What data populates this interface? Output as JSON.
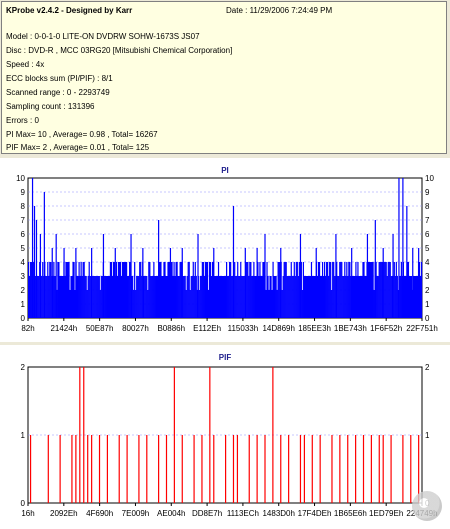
{
  "header": {
    "title": "KProbe v2.4.2 - Designed by Karr",
    "date": "Date : 11/29/2006 7:24:49 PM"
  },
  "info": {
    "model": "Model : 0-0-1-0 LITE-ON DVDRW SOHW-1673S JS07",
    "disc": "Disc : DVD-R , MCC 03RG20   [Mitsubishi Chemical Corporation]",
    "speed": "Speed : 4x",
    "ecc": "ECC blocks sum (PI/PIF) : 8/1",
    "range": "Scanned range : 0 - 2293749",
    "sampling": "Sampling count : 131396",
    "errors": "Errors : 0",
    "pi": "PI Max= 10 , Average= 0.98 , Total= 16267",
    "pif": "PIF Max= 2 , Average= 0.01 , Total= 125"
  },
  "colors": {
    "pi_bar": "#0000ff",
    "pif_bar": "#ff0000",
    "title": "#1e1e8c",
    "grid": "#9090ff"
  },
  "chart_data": [
    {
      "type": "bar",
      "title": "PI",
      "ylim": [
        0,
        10
      ],
      "yticks": [
        0,
        1,
        2,
        3,
        4,
        5,
        6,
        7,
        8,
        9,
        10
      ],
      "xticks": [
        "82h",
        "21424h",
        "50E87h",
        "80027h",
        "B0886h",
        "E112Eh",
        "115033h",
        "14D869h",
        "185EE3h",
        "1BE743h",
        "1F6F52h",
        "22F751h"
      ],
      "baseline_range": [
        3,
        4
      ],
      "spikes": [
        [
          0.01,
          10
        ],
        [
          0.015,
          8
        ],
        [
          0.02,
          7
        ],
        [
          0.03,
          6
        ],
        [
          0.04,
          9
        ],
        [
          0.06,
          5
        ],
        [
          0.07,
          6
        ],
        [
          0.09,
          5
        ],
        [
          0.12,
          5
        ],
        [
          0.16,
          5
        ],
        [
          0.19,
          6
        ],
        [
          0.22,
          5
        ],
        [
          0.26,
          6
        ],
        [
          0.29,
          5
        ],
        [
          0.33,
          7
        ],
        [
          0.36,
          5
        ],
        [
          0.39,
          5
        ],
        [
          0.43,
          6
        ],
        [
          0.47,
          5
        ],
        [
          0.52,
          8
        ],
        [
          0.55,
          5
        ],
        [
          0.58,
          5
        ],
        [
          0.6,
          6
        ],
        [
          0.64,
          5
        ],
        [
          0.69,
          6
        ],
        [
          0.73,
          5
        ],
        [
          0.78,
          6
        ],
        [
          0.82,
          5
        ],
        [
          0.86,
          6
        ],
        [
          0.88,
          7
        ],
        [
          0.9,
          5
        ],
        [
          0.925,
          6
        ],
        [
          0.94,
          10
        ],
        [
          0.95,
          10
        ],
        [
          0.96,
          8
        ],
        [
          0.975,
          5
        ],
        [
          0.99,
          5
        ]
      ]
    },
    {
      "type": "bar",
      "title": "PIF",
      "ylim": [
        0,
        2
      ],
      "yticks": [
        0,
        1,
        2
      ],
      "xticks": [
        "16h",
        "2092Eh",
        "4F690h",
        "7E009h",
        "AE004h",
        "DD8E7h",
        "1113ECh",
        "1483D0h",
        "17F4DEh",
        "1B65E6h",
        "1ED79Eh",
        "224749h"
      ],
      "bars": [
        [
          0.005,
          1
        ],
        [
          0.05,
          1
        ],
        [
          0.08,
          1
        ],
        [
          0.11,
          1
        ],
        [
          0.12,
          1
        ],
        [
          0.13,
          2
        ],
        [
          0.14,
          2
        ],
        [
          0.15,
          1
        ],
        [
          0.16,
          1
        ],
        [
          0.18,
          1
        ],
        [
          0.2,
          1
        ],
        [
          0.23,
          1
        ],
        [
          0.25,
          1
        ],
        [
          0.28,
          1
        ],
        [
          0.3,
          1
        ],
        [
          0.33,
          1
        ],
        [
          0.35,
          1
        ],
        [
          0.37,
          2
        ],
        [
          0.39,
          1
        ],
        [
          0.42,
          1
        ],
        [
          0.44,
          1
        ],
        [
          0.46,
          2
        ],
        [
          0.47,
          1
        ],
        [
          0.5,
          1
        ],
        [
          0.52,
          1
        ],
        [
          0.53,
          1
        ],
        [
          0.56,
          1
        ],
        [
          0.58,
          1
        ],
        [
          0.6,
          1
        ],
        [
          0.62,
          2
        ],
        [
          0.64,
          1
        ],
        [
          0.66,
          1
        ],
        [
          0.69,
          1
        ],
        [
          0.7,
          1
        ],
        [
          0.72,
          1
        ],
        [
          0.74,
          1
        ],
        [
          0.77,
          1
        ],
        [
          0.79,
          1
        ],
        [
          0.81,
          1
        ],
        [
          0.83,
          1
        ],
        [
          0.85,
          1
        ],
        [
          0.87,
          1
        ],
        [
          0.89,
          1
        ],
        [
          0.9,
          1
        ],
        [
          0.92,
          1
        ],
        [
          0.95,
          1
        ],
        [
          0.97,
          1
        ],
        [
          0.99,
          1
        ]
      ]
    }
  ]
}
